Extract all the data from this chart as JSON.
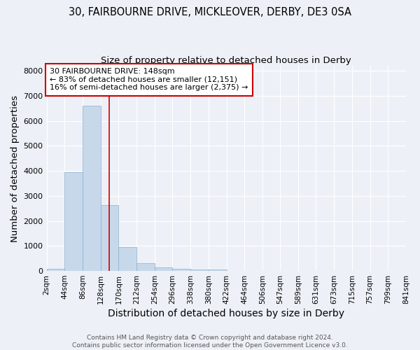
{
  "title1": "30, FAIRBOURNE DRIVE, MICKLEOVER, DERBY, DE3 0SA",
  "title2": "Size of property relative to detached houses in Derby",
  "xlabel": "Distribution of detached houses by size in Derby",
  "ylabel": "Number of detached properties",
  "annotation_line1": "30 FAIRBOURNE DRIVE: 148sqm",
  "annotation_line2": "← 83% of detached houses are smaller (12,151)",
  "annotation_line3": "16% of semi-detached houses are larger (2,375) →",
  "footer1": "Contains HM Land Registry data © Crown copyright and database right 2024.",
  "footer2": "Contains public sector information licensed under the Open Government Licence v3.0.",
  "bar_color": "#c8d8eb",
  "bar_edge_color": "#8ab0cc",
  "vline_color": "#cc0000",
  "vline_x": 148,
  "annotation_box_color": "#cc0000",
  "background_color": "#edf1f7",
  "plot_bg_color": "#edf1f7",
  "bin_edges": [
    2,
    44,
    86,
    128,
    170,
    212,
    254,
    296,
    338,
    380,
    422,
    464,
    506,
    547,
    589,
    631,
    673,
    715,
    757,
    799,
    841
  ],
  "bin_counts": [
    75,
    3950,
    6600,
    2620,
    950,
    320,
    140,
    90,
    65,
    60,
    5,
    5,
    5,
    0,
    0,
    0,
    0,
    0,
    0,
    0
  ],
  "ylim": [
    0,
    8200
  ],
  "yticks": [
    0,
    1000,
    2000,
    3000,
    4000,
    5000,
    6000,
    7000,
    8000
  ],
  "grid_color": "#ffffff",
  "title_fontsize": 10.5,
  "subtitle_fontsize": 9.5,
  "axis_label_fontsize": 9.5,
  "tick_fontsize": 7.5,
  "footer_fontsize": 6.5
}
